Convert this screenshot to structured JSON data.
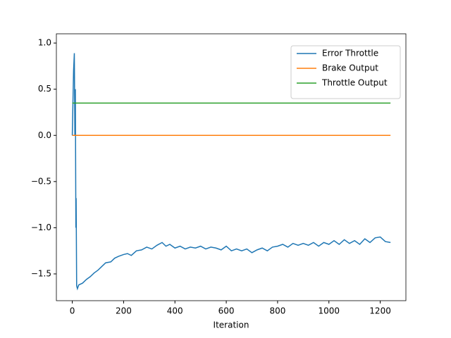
{
  "chart_data": {
    "type": "line",
    "x_label": "Iteration",
    "xlim": [
      -62,
      1300
    ],
    "ylim": [
      -1.79,
      1.1
    ],
    "xticks": [
      0,
      200,
      400,
      600,
      800,
      1000,
      1200
    ],
    "yticks": [
      {
        "value": -1.5,
        "label": "−1.5"
      },
      {
        "value": -1.0,
        "label": "−1.0"
      },
      {
        "value": -0.5,
        "label": "−0.5"
      },
      {
        "value": 0,
        "label": "0.0"
      },
      {
        "value": 0.5,
        "label": "0.5"
      },
      {
        "value": 1.0,
        "label": "1.0"
      }
    ],
    "legend": "upper right",
    "grid": false,
    "series": [
      {
        "name": "Error Throttle",
        "color": "#1f77b4",
        "x": [
          0,
          5,
          8,
          10,
          12,
          14,
          15,
          17,
          20,
          25,
          40,
          55,
          70,
          85,
          100,
          115,
          130,
          150,
          165,
          180,
          200,
          215,
          230,
          250,
          270,
          290,
          310,
          330,
          350,
          365,
          380,
          400,
          420,
          440,
          460,
          480,
          500,
          520,
          540,
          560,
          580,
          600,
          620,
          640,
          660,
          680,
          700,
          720,
          740,
          760,
          780,
          800,
          820,
          840,
          860,
          880,
          900,
          920,
          940,
          960,
          980,
          1000,
          1020,
          1040,
          1060,
          1080,
          1100,
          1120,
          1140,
          1160,
          1180,
          1200,
          1220,
          1240
        ],
        "values": [
          0.0,
          0.7,
          0.89,
          0.0,
          0.5,
          -1.0,
          -0.68,
          -1.63,
          -1.66,
          -1.62,
          -1.6,
          -1.56,
          -1.53,
          -1.49,
          -1.46,
          -1.42,
          -1.38,
          -1.37,
          -1.33,
          -1.31,
          -1.29,
          -1.28,
          -1.3,
          -1.25,
          -1.24,
          -1.21,
          -1.23,
          -1.19,
          -1.16,
          -1.2,
          -1.18,
          -1.22,
          -1.2,
          -1.23,
          -1.21,
          -1.22,
          -1.2,
          -1.23,
          -1.21,
          -1.22,
          -1.24,
          -1.2,
          -1.25,
          -1.23,
          -1.25,
          -1.23,
          -1.27,
          -1.24,
          -1.22,
          -1.25,
          -1.21,
          -1.2,
          -1.18,
          -1.21,
          -1.17,
          -1.19,
          -1.17,
          -1.19,
          -1.16,
          -1.2,
          -1.16,
          -1.18,
          -1.14,
          -1.18,
          -1.13,
          -1.17,
          -1.14,
          -1.18,
          -1.12,
          -1.16,
          -1.11,
          -1.1,
          -1.15,
          -1.16
        ]
      },
      {
        "name": "Brake Output",
        "color": "#ff7f0e",
        "x": [
          0,
          1240
        ],
        "values": [
          0,
          0
        ]
      },
      {
        "name": "Throttle Output",
        "color": "#2ca02c",
        "x": [
          0,
          1240
        ],
        "values": [
          0.35,
          0.35
        ]
      }
    ]
  }
}
